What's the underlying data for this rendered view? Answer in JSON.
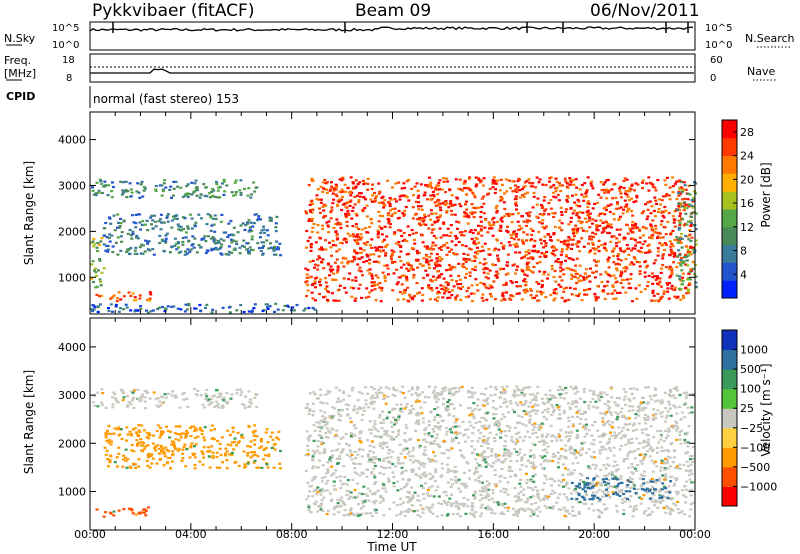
{
  "header": {
    "station": "Pykkvibaer (fitACF)",
    "beam": "Beam 09",
    "date": "06/Nov/2011"
  },
  "nsky": {
    "label": "N.Sky",
    "tick_top": "10^5",
    "tick_bot": "10^0",
    "right_tick_top": "10^5",
    "right_tick_bot": "10^0",
    "right_label": "N.Search"
  },
  "freq": {
    "label_line1": "Freq.",
    "label_line2": "[MHz]",
    "tick_top": "18",
    "tick_bot": "8",
    "right_tick_top": "60",
    "right_tick_bot": "0",
    "right_label": "Nave"
  },
  "cpid": {
    "label": "CPID",
    "text": "normal (fast stereo) 153"
  },
  "chart_data": [
    {
      "type": "heatmap",
      "title": "",
      "xlabel": "Time UT",
      "ylabel": "Slant Range [km]",
      "x_ticks": [
        "00:00",
        "04:00",
        "08:00",
        "12:00",
        "16:00",
        "20:00",
        "00:00"
      ],
      "y_ticks": [
        1000,
        2000,
        3000,
        4000
      ],
      "xlim_hours": [
        0,
        24
      ],
      "ylim_km": [
        200,
        4600
      ],
      "colorbar": {
        "label": "Power [dB]",
        "ticks": [
          4,
          8,
          12,
          16,
          20,
          24,
          28
        ],
        "range": [
          0,
          30
        ],
        "colors": [
          "#0022ff",
          "#2255cc",
          "#3a7a9a",
          "#4a8a5a",
          "#55a845",
          "#a8c020",
          "#ffb000",
          "#ff7a00",
          "#ff3a00",
          "#ff0000"
        ]
      },
      "regions": [
        {
          "t0": 0.0,
          "t1": 6.6,
          "r0": 2750,
          "r1": 3150,
          "db": 10
        },
        {
          "t0": 0.0,
          "t1": 0.5,
          "r0": 800,
          "r1": 1900,
          "db": 14
        },
        {
          "t0": 0.2,
          "t1": 2.5,
          "r0": 500,
          "r1": 700,
          "db": 24
        },
        {
          "t0": 0.5,
          "t1": 7.5,
          "r0": 1500,
          "r1": 2400,
          "db": 8
        },
        {
          "t0": 0.0,
          "t1": 9.0,
          "r0": 250,
          "r1": 450,
          "db": 6
        },
        {
          "t0": 8.5,
          "t1": 23.9,
          "r0": 500,
          "r1": 3200,
          "db": 26
        },
        {
          "t0": 23.2,
          "t1": 24.0,
          "r0": 700,
          "r1": 3100,
          "db": 12
        }
      ]
    },
    {
      "type": "heatmap",
      "title": "",
      "xlabel": "Time UT",
      "ylabel": "Slant Range [km]",
      "x_ticks": [
        "00:00",
        "04:00",
        "08:00",
        "12:00",
        "16:00",
        "20:00",
        "00:00"
      ],
      "y_ticks": [
        1000,
        2000,
        3000,
        4000
      ],
      "xlim_hours": [
        0,
        24
      ],
      "ylim_km": [
        200,
        4600
      ],
      "colorbar": {
        "label": "Velocity [m s⁻¹]",
        "ticks": [
          "1000",
          "500",
          "100",
          "25",
          "−25",
          "−100",
          "−500",
          "−1000"
        ],
        "colors": [
          "#1133bb",
          "#3070a0",
          "#3a9a5a",
          "#55c43a",
          "#c8c8c0",
          "#ffd040",
          "#ff9a00",
          "#ff5000",
          "#ff0000"
        ]
      },
      "regions": [
        {
          "t0": 0.0,
          "t1": 6.6,
          "r0": 2750,
          "r1": 3150,
          "vel": 0
        },
        {
          "t0": 8.5,
          "t1": 23.9,
          "r0": 500,
          "r1": 3200,
          "vel": 0
        },
        {
          "t0": 0.2,
          "t1": 2.5,
          "r0": 500,
          "r1": 700,
          "vel": -500
        },
        {
          "t0": 0.5,
          "t1": 7.5,
          "r0": 1500,
          "r1": 2400,
          "vel": -100
        },
        {
          "t0": 19.0,
          "t1": 23.0,
          "r0": 850,
          "r1": 1300,
          "vel": 500
        }
      ]
    }
  ]
}
